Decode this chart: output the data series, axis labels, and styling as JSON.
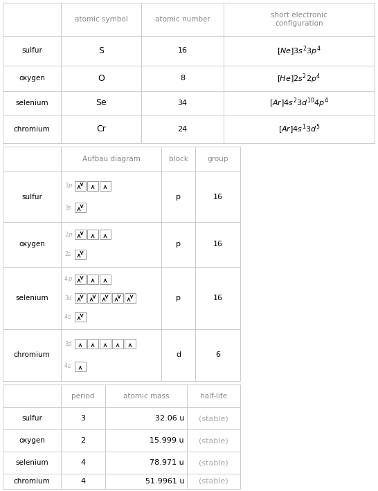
{
  "elements": [
    "sulfur",
    "oxygen",
    "selenium",
    "chromium"
  ],
  "atomic_symbols": [
    "S",
    "O",
    "Se",
    "Cr"
  ],
  "atomic_numbers": [
    "16",
    "8",
    "34",
    "24"
  ],
  "short_configs_math": [
    "$[Ne]3s^23p^4$",
    "$[He]2s^22p^4$",
    "$[Ar]4s^23d^{10}4p^4$",
    "$[Ar]4s^13d^5$"
  ],
  "blocks": [
    "p",
    "p",
    "p",
    "d"
  ],
  "groups": [
    "16",
    "16",
    "16",
    "6"
  ],
  "periods": [
    "3",
    "2",
    "4",
    "4"
  ],
  "atomic_masses": [
    "32.06 u",
    "15.999 u",
    "78.971 u",
    "51.9961 u"
  ],
  "half_lives": [
    "(stable)",
    "(stable)",
    "(stable)",
    "(stable)"
  ],
  "aufbau": {
    "sulfur": [
      {
        "label": "3p",
        "boxes": [
          "ud",
          "u",
          "u"
        ]
      },
      {
        "label": "3s",
        "boxes": [
          "ud"
        ]
      }
    ],
    "oxygen": [
      {
        "label": "2p",
        "boxes": [
          "ud",
          "u",
          "u"
        ]
      },
      {
        "label": "2s",
        "boxes": [
          "ud"
        ]
      }
    ],
    "selenium": [
      {
        "label": "4p",
        "boxes": [
          "ud",
          "u",
          "u"
        ]
      },
      {
        "label": "3d",
        "boxes": [
          "ud",
          "ud",
          "ud",
          "ud",
          "ud"
        ]
      },
      {
        "label": "4s",
        "boxes": [
          "ud"
        ]
      }
    ],
    "chromium": [
      {
        "label": "3d",
        "boxes": [
          "u",
          "u",
          "u",
          "u",
          "u"
        ]
      },
      {
        "label": "4s",
        "boxes": [
          "u"
        ]
      }
    ]
  },
  "bg_color": "#ffffff",
  "line_color": "#cccccc",
  "text_color": "#000000",
  "header_color": "#888888",
  "stable_color": "#aaaaaa",
  "orbital_label_color": "#aaaaaa",
  "arrow_color": "#000000"
}
